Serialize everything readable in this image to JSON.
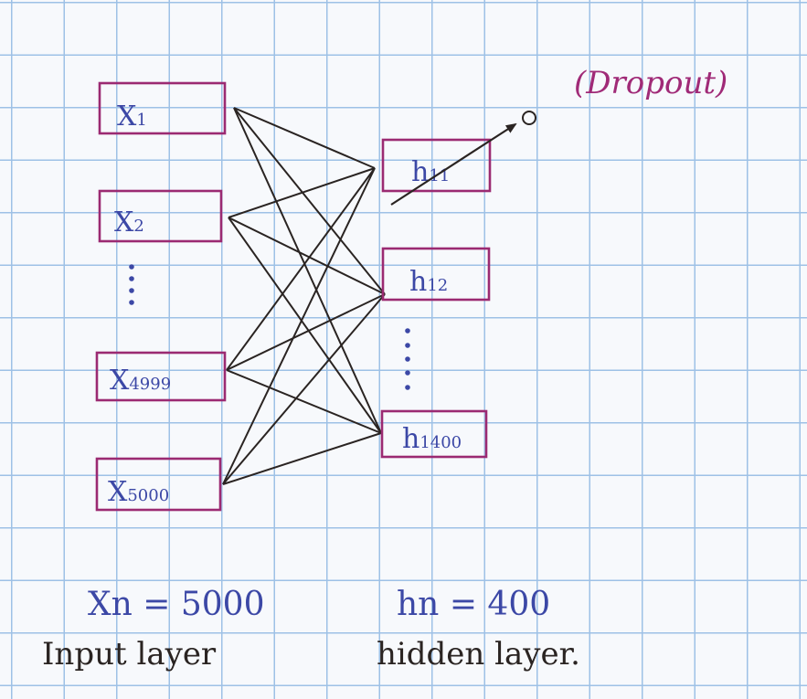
{
  "input_layer": {
    "nodes": [
      {
        "id": "x1",
        "main": "X",
        "sub": "1"
      },
      {
        "id": "x2",
        "main": "X",
        "sub": "2"
      },
      {
        "id": "x4999",
        "main": "X",
        "sub": "4999"
      },
      {
        "id": "x5000",
        "main": "X",
        "sub": "5000"
      }
    ],
    "count_label": "Xn = 5000",
    "name": "Input layer"
  },
  "hidden_layer": {
    "nodes": [
      {
        "id": "h11",
        "main": "h",
        "sub": "11"
      },
      {
        "id": "h12",
        "main": "h",
        "sub": "12"
      },
      {
        "id": "h1400",
        "main": "h",
        "sub": "1400"
      }
    ],
    "count_label": "hn = 400",
    "name": "hidden layer."
  },
  "dropout_label": "(Dropout)",
  "colors": {
    "box_border": "#9b2a72",
    "node_text": "#3c48a6",
    "edges": "#2a2422",
    "dropout_text": "#a02a77",
    "grid": "#9ec1e6"
  }
}
